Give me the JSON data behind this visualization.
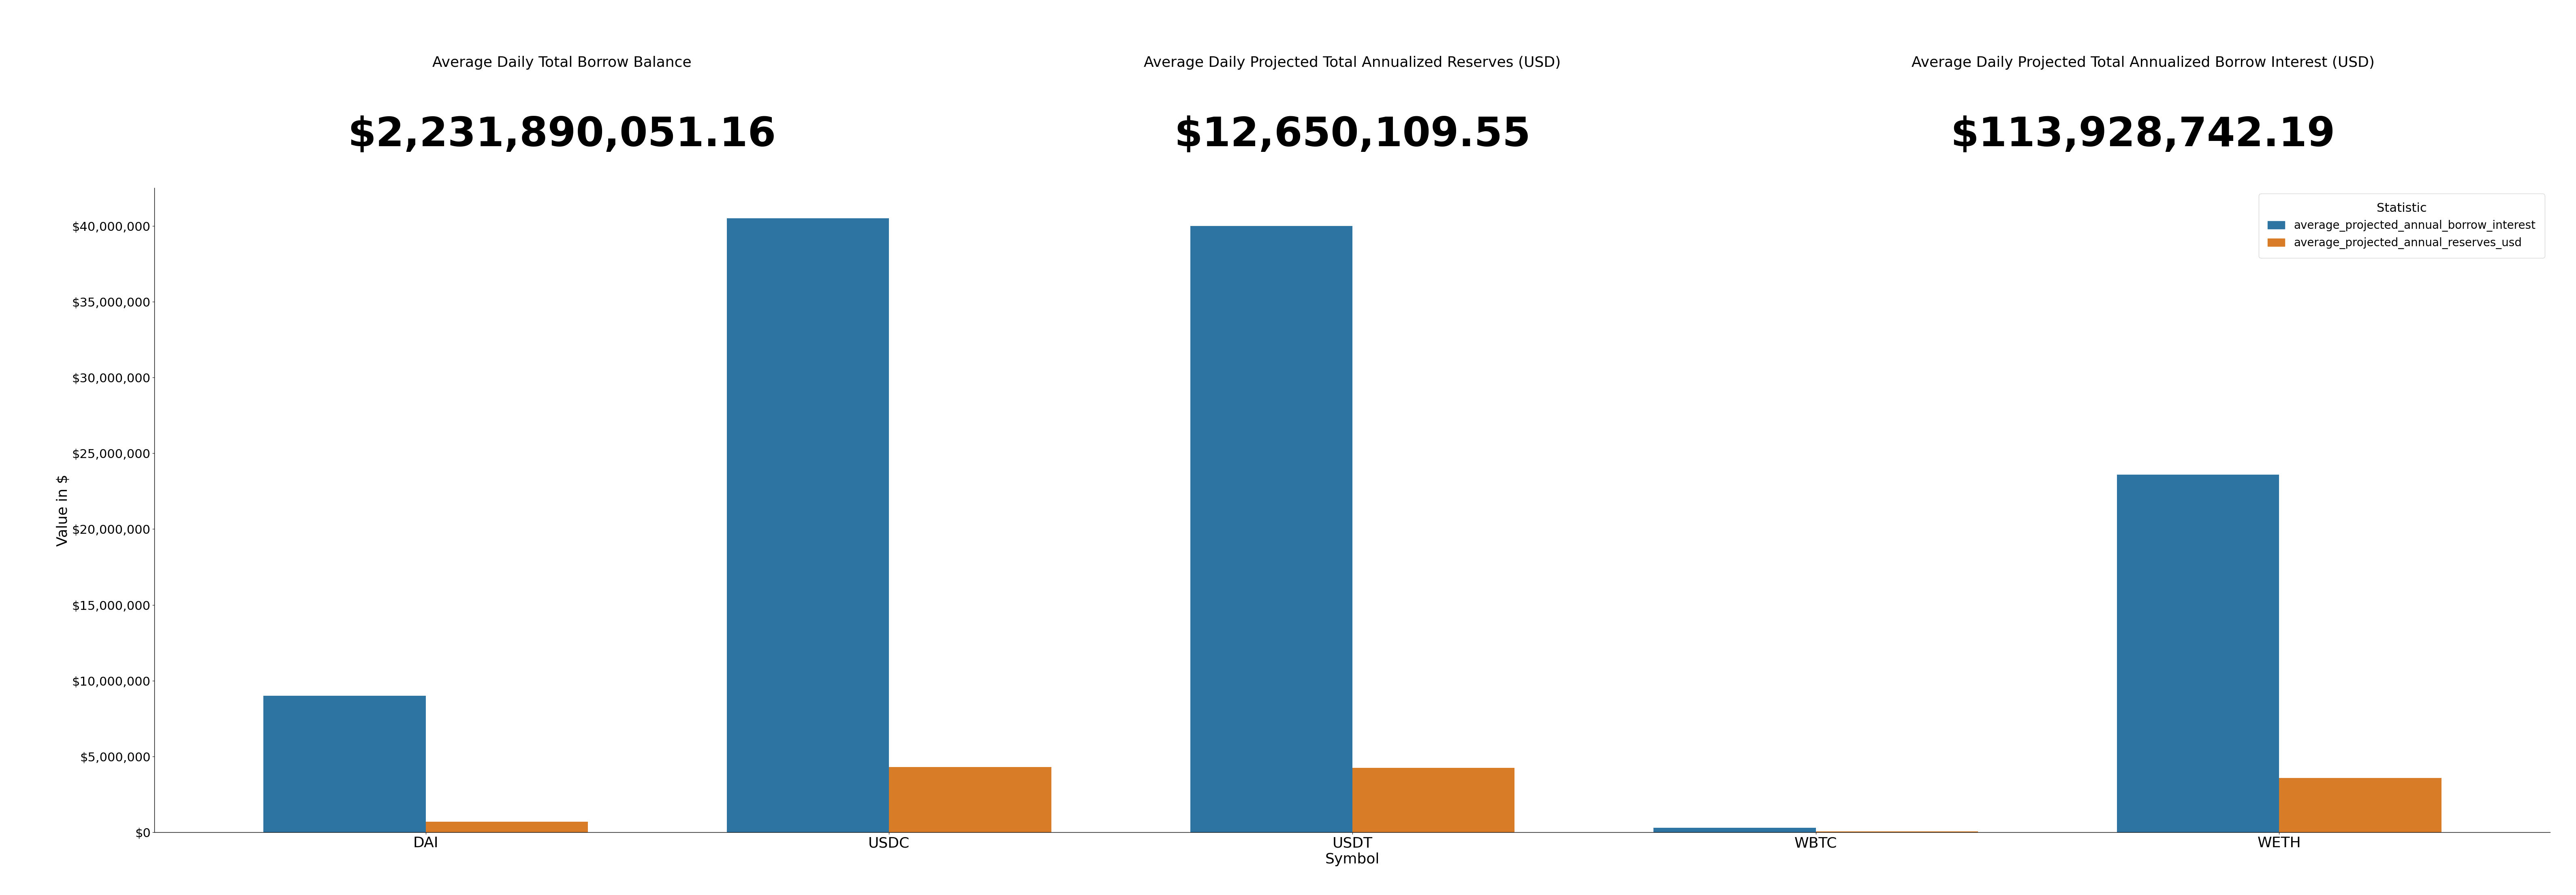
{
  "title_metric1_label": "Average Daily Total Borrow Balance",
  "title_metric1_value": "$2,231,890,051.16",
  "title_metric2_label": "Average Daily Projected Total Annualized Reserves (USD)",
  "title_metric2_value": "$12,650,109.55",
  "title_metric3_label": "Average Daily Projected Total Annualized Borrow Interest (USD)",
  "title_metric3_value": "$113,928,742.19",
  "categories": [
    "DAI",
    "USDC",
    "USDT",
    "WBTC",
    "WETH"
  ],
  "borrow_interest": [
    9000000,
    40500000,
    40000000,
    300000,
    23600000
  ],
  "reserves_usd": [
    700000,
    4300000,
    4250000,
    50000,
    3600000
  ],
  "color_borrow": "#2e74a3",
  "color_reserves": "#d97c27",
  "ylabel": "Value in $",
  "xlabel": "Symbol",
  "legend_title": "Statistic",
  "legend_label_borrow": "average_projected_annual_borrow_interest",
  "legend_label_reserves": "average_projected_annual_reserves_usd",
  "background_color": "#ffffff",
  "ylim": [
    0,
    42500000
  ],
  "yticks": [
    0,
    5000000,
    10000000,
    15000000,
    20000000,
    25000000,
    30000000,
    35000000,
    40000000
  ]
}
